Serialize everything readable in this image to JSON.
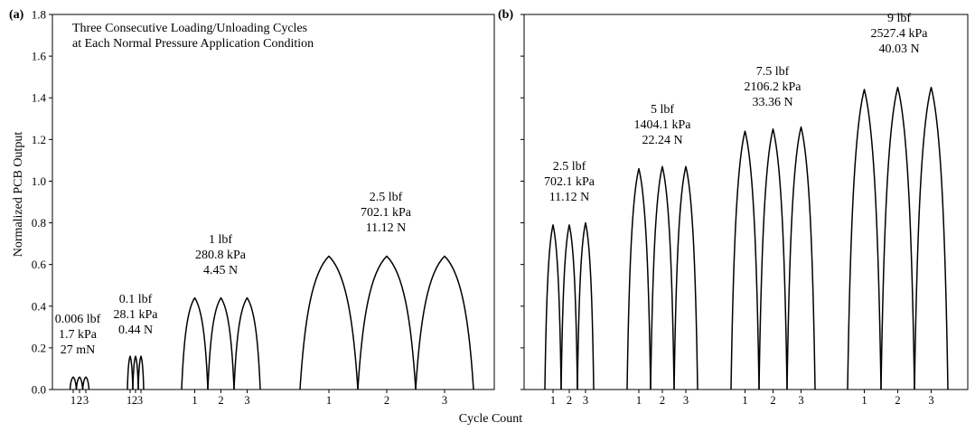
{
  "figure": {
    "ylabel": "Normalized PCB Output",
    "xlabel": "Cycle Count",
    "yticks": [
      "0.0",
      "0.2",
      "0.4",
      "0.6",
      "0.8",
      "1.0",
      "1.2",
      "1.4",
      "1.6",
      "1.8"
    ],
    "colors": {
      "line": "#000000",
      "background": "#ffffff"
    }
  },
  "chart_data": [
    {
      "type": "line",
      "panel_label": "(a)",
      "title": "",
      "annotation": [
        "Three Consecutive Loading/Unloading Cycles",
        "at Each Normal Pressure Application Condition"
      ],
      "xlabel": "Cycle Count",
      "ylabel": "Normalized PCB Output",
      "ylim": [
        0,
        1.8
      ],
      "groups": [
        {
          "labels": [
            "0.006 lbf",
            "1.7 kPa",
            "27 mN"
          ],
          "cycle_tick_labels": [
            "1",
            "2",
            "3"
          ],
          "peaks": [
            0.06,
            0.06,
            0.06
          ]
        },
        {
          "labels": [
            "0.1 lbf",
            "28.1 kPa",
            "0.44 N"
          ],
          "cycle_tick_labels": [
            "1",
            "2",
            "3"
          ],
          "peaks": [
            0.16,
            0.16,
            0.16
          ]
        },
        {
          "labels": [
            "1 lbf",
            "280.8 kPa",
            "4.45 N"
          ],
          "cycle_tick_labels": [
            "1",
            "2",
            "3"
          ],
          "peaks": [
            0.44,
            0.44,
            0.44
          ]
        },
        {
          "labels": [
            "2.5 lbf",
            "702.1 kPa",
            "11.12 N"
          ],
          "cycle_tick_labels": [
            "1",
            "2",
            "3"
          ],
          "peaks": [
            0.64,
            0.64,
            0.64
          ]
        }
      ]
    },
    {
      "type": "line",
      "panel_label": "(b)",
      "title": "",
      "xlabel": "Cycle Count",
      "ylabel": "Normalized PCB Output",
      "ylim": [
        0,
        1.8
      ],
      "groups": [
        {
          "labels": [
            "2.5 lbf",
            "702.1 kPa",
            "11.12 N"
          ],
          "cycle_tick_labels": [
            "1",
            "2",
            "3"
          ],
          "peaks": [
            0.79,
            0.79,
            0.8
          ]
        },
        {
          "labels": [
            "5 lbf",
            "1404.1 kPa",
            "22.24 N"
          ],
          "cycle_tick_labels": [
            "1",
            "2",
            "3"
          ],
          "peaks": [
            1.06,
            1.07,
            1.07
          ]
        },
        {
          "labels": [
            "7.5 lbf",
            "2106.2 kPa",
            "33.36 N"
          ],
          "cycle_tick_labels": [
            "1",
            "2",
            "3"
          ],
          "peaks": [
            1.24,
            1.25,
            1.26
          ]
        },
        {
          "labels": [
            "9 lbf",
            "2527.4 kPa",
            "40.03 N"
          ],
          "cycle_tick_labels": [
            "1",
            "2",
            "3"
          ],
          "peaks": [
            1.44,
            1.45,
            1.45
          ]
        }
      ]
    }
  ]
}
